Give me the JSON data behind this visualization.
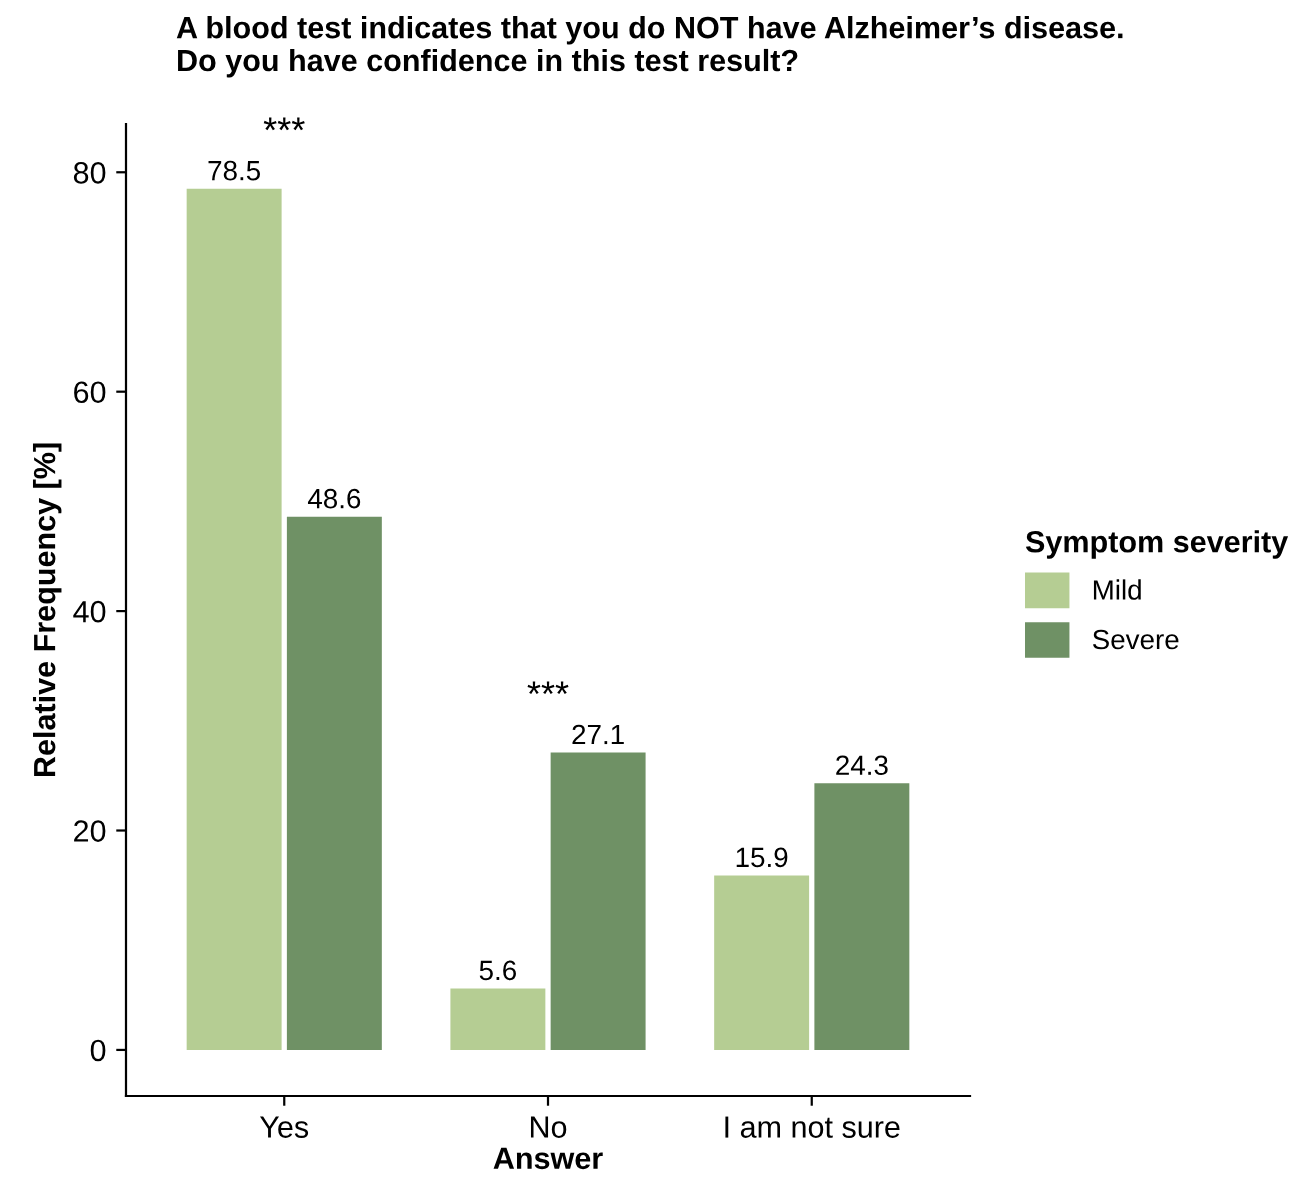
{
  "chart_data": {
    "type": "bar",
    "title": "A blood test indicates that you do NOT have Alzheimer’s disease.\nDo you have confidence in this test result?",
    "xlabel": "Answer",
    "ylabel": "Relative Frequency [%]",
    "legend_title": "Symptom severity",
    "categories": [
      "Yes",
      "No",
      "I am not sure"
    ],
    "series": [
      {
        "name": "Mild",
        "color": "#b5cd93",
        "values": [
          78.5,
          5.6,
          15.9
        ]
      },
      {
        "name": "Severe",
        "color": "#6f9165",
        "values": [
          48.6,
          27.1,
          24.3
        ]
      }
    ],
    "ylim": [
      -4.2,
      84.4
    ],
    "yticks": [
      0,
      20,
      40,
      60,
      80
    ],
    "data_labels": true,
    "legend": "right",
    "grid": false,
    "annotations": [
      "***",
      "***"
    ]
  }
}
